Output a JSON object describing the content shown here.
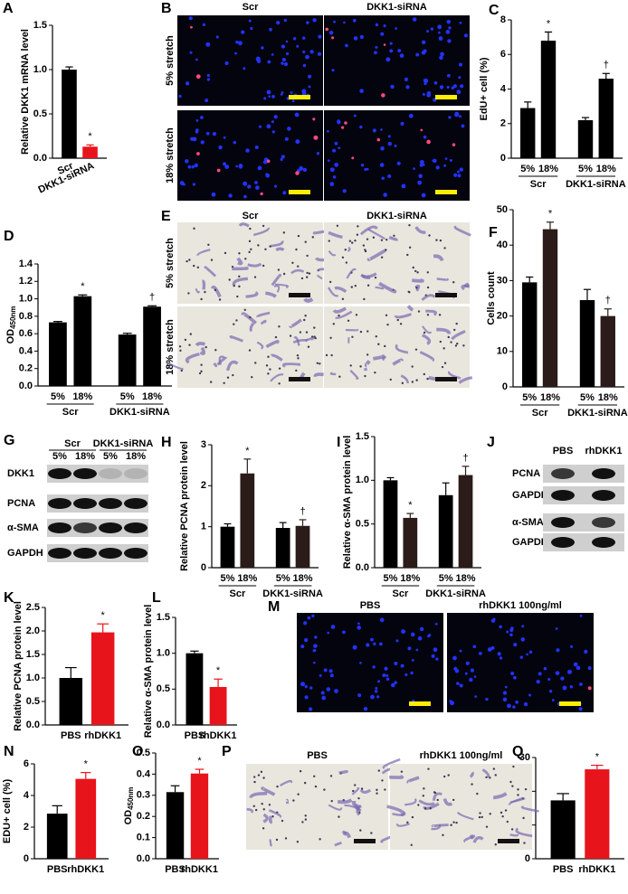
{
  "chart_data": [
    {
      "panel": "A",
      "type": "bar",
      "ylabel": "Relative DKK1 mRNA level",
      "categories": [
        "Scr",
        "DKK1-siRNA"
      ],
      "values": [
        1.0,
        0.13
      ],
      "errors": [
        0.03,
        0.02
      ],
      "colors": [
        "#000000",
        "#e8141c"
      ],
      "annotations": [
        null,
        "*"
      ],
      "ylim": [
        0,
        1.5
      ],
      "yticks": [
        {
          "value": 0,
          "label": "0.0"
        },
        0.5,
        {
          "value": 1,
          "label": "1.0"
        },
        1.5
      ]
    },
    {
      "panel": "C",
      "type": "bar",
      "ylabel": "EdU+ cell (%)",
      "groups": [
        "Scr",
        "DKK1-siRNA"
      ],
      "categories": [
        "5%",
        "18%",
        "5%",
        "18%"
      ],
      "values": [
        2.9,
        6.8,
        2.2,
        4.6
      ],
      "errors": [
        0.35,
        0.5,
        0.15,
        0.3
      ],
      "colors": [
        "#000000",
        "#000000",
        "#000000",
        "#000000"
      ],
      "annotations": [
        null,
        "*",
        null,
        "†"
      ],
      "ylim": [
        0,
        8
      ],
      "yticks": [
        0,
        2,
        4,
        6,
        8
      ]
    },
    {
      "panel": "D",
      "type": "bar",
      "ylabel": "OD",
      "ylabel_sub": "450nm",
      "groups": [
        "Scr",
        "DKK1-siRNA"
      ],
      "categories": [
        "5%",
        "18%",
        "5%",
        "18%"
      ],
      "values": [
        0.73,
        1.03,
        0.59,
        0.91
      ],
      "errors": [
        0.01,
        0.015,
        0.015,
        0.01
      ],
      "colors": [
        "#000000",
        "#000000",
        "#000000",
        "#000000"
      ],
      "annotations": [
        null,
        "*",
        null,
        "†"
      ],
      "ylim": [
        0,
        1.4
      ],
      "yticks": [
        {
          "value": 0,
          "label": "0.0"
        },
        0.2,
        0.4,
        0.6,
        0.8,
        {
          "value": 1,
          "label": "1.0"
        },
        1.2,
        1.4
      ]
    },
    {
      "panel": "F",
      "type": "bar",
      "ylabel": "Cells count",
      "groups": [
        "Scr",
        "DKK1-siRNA"
      ],
      "categories": [
        "5%",
        "18%",
        "5%",
        "18%"
      ],
      "values": [
        29.5,
        44.5,
        24.5,
        20
      ],
      "errors": [
        1.5,
        2,
        3,
        2
      ],
      "colors": [
        "#000000",
        "#2b1c19",
        "#000000",
        "#2b1c19"
      ],
      "annotations": [
        null,
        "*",
        null,
        "†"
      ],
      "ylim": [
        0,
        50
      ],
      "yticks": [
        0,
        10,
        20,
        30,
        40,
        50
      ]
    },
    {
      "panel": "H",
      "type": "bar",
      "ylabel": "Relative PCNA protein level",
      "groups": [
        "Scr",
        "DKK1-siRNA"
      ],
      "categories": [
        "5%",
        "18%",
        "5%",
        "18%"
      ],
      "values": [
        1.0,
        2.3,
        0.97,
        1.02
      ],
      "errors": [
        0.07,
        0.35,
        0.13,
        0.15
      ],
      "colors": [
        "#000000",
        "#2b1c19",
        "#000000",
        "#2b1c19"
      ],
      "annotations": [
        null,
        "*",
        null,
        "†"
      ],
      "ylim": [
        0,
        3
      ],
      "yticks": [
        0,
        1,
        2,
        3
      ]
    },
    {
      "panel": "I",
      "type": "bar",
      "ylabel": "Relative α-SMA protein level",
      "groups": [
        "Scr",
        "DKK1-siRNA"
      ],
      "categories": [
        "5%",
        "18%",
        "5%",
        "18%"
      ],
      "values": [
        1.0,
        0.57,
        0.83,
        1.06
      ],
      "errors": [
        0.03,
        0.05,
        0.14,
        0.1
      ],
      "colors": [
        "#000000",
        "#2b1c19",
        "#000000",
        "#2b1c19"
      ],
      "annotations": [
        null,
        "*",
        null,
        "†"
      ],
      "ylim": [
        0,
        1.5
      ],
      "yticks": [
        {
          "value": 0,
          "label": "0.0"
        },
        0.5,
        {
          "value": 1,
          "label": "1.0"
        },
        1.5
      ]
    },
    {
      "panel": "K",
      "type": "bar",
      "ylabel": "Relative PCNA protein level",
      "categories": [
        "PBS",
        "rhDKK1"
      ],
      "values": [
        1.0,
        1.97
      ],
      "errors": [
        0.22,
        0.18
      ],
      "colors": [
        "#000000",
        "#e8141c"
      ],
      "annotations": [
        null,
        "*"
      ],
      "ylim": [
        0,
        2.5
      ],
      "yticks": [
        {
          "value": 0,
          "label": "0.0"
        },
        0.5,
        {
          "value": 1,
          "label": "1.0"
        },
        1.5,
        {
          "value": 2,
          "label": "2.0"
        },
        2.5
      ]
    },
    {
      "panel": "L",
      "type": "bar",
      "ylabel": "Relative α-SMA protein level",
      "categories": [
        "PBS",
        "rhDKK1"
      ],
      "values": [
        1.0,
        0.53
      ],
      "errors": [
        0.03,
        0.11
      ],
      "colors": [
        "#000000",
        "#e8141c"
      ],
      "annotations": [
        null,
        "*"
      ],
      "ylim": [
        0,
        1.5
      ],
      "yticks": [
        {
          "value": 0,
          "label": "0.0"
        },
        0.5,
        {
          "value": 1,
          "label": "1.0"
        },
        1.5
      ]
    },
    {
      "panel": "N",
      "type": "bar",
      "ylabel": "EDU+ cell (%)",
      "categories": [
        "PBS",
        "rhDKK1"
      ],
      "values": [
        2.85,
        5.05
      ],
      "errors": [
        0.5,
        0.4
      ],
      "colors": [
        "#000000",
        "#e8141c"
      ],
      "annotations": [
        null,
        "*"
      ],
      "ylim": [
        0,
        6
      ],
      "yticks": [
        0,
        2,
        4,
        6
      ]
    },
    {
      "panel": "O",
      "type": "bar",
      "ylabel": "OD",
      "ylabel_sub": "450nm",
      "categories": [
        "PBS",
        "rhDKK1"
      ],
      "values": [
        0.315,
        0.403
      ],
      "errors": [
        0.03,
        0.02
      ],
      "colors": [
        "#000000",
        "#e8141c"
      ],
      "annotations": [
        null,
        "*"
      ],
      "ylim": [
        0,
        0.5
      ],
      "yticks": [
        {
          "value": 0,
          "label": "0.0"
        },
        0.1,
        0.2,
        0.3,
        0.4,
        0.5
      ]
    },
    {
      "panel": "Q",
      "type": "bar",
      "ylabel": "Cells count",
      "categories": [
        "PBS",
        "rhDKK1"
      ],
      "values": [
        17.3,
        26.5
      ],
      "errors": [
        2,
        1.2
      ],
      "colors": [
        "#000000",
        "#e8141c"
      ],
      "annotations": [
        null,
        "*"
      ],
      "ylim": [
        0,
        30
      ],
      "yticks": [
        0,
        10,
        20,
        30
      ]
    }
  ],
  "images": [
    {
      "panel": "B",
      "columns": [
        "Scr",
        "DKK1-siRNA"
      ],
      "rows": [
        "5% stretch",
        "18% stretch"
      ]
    },
    {
      "panel": "E",
      "columns": [
        "Scr",
        "DKK1-siRNA"
      ],
      "rows": [
        "5% stretch",
        "18% stretch"
      ]
    },
    {
      "panel": "M",
      "columns": [
        "PBS",
        "rhDKK1 100ng/ml"
      ]
    },
    {
      "panel": "P",
      "columns": [
        "PBS",
        "rhDKK1 100ng/ml"
      ]
    }
  ],
  "blots": [
    {
      "panel": "G",
      "groups": [
        "Scr",
        "DKK1-siRNA"
      ],
      "lanes": [
        "5%",
        "18%",
        "5%",
        "18%"
      ],
      "rows": [
        "DKK1",
        "PCNA",
        "α-SMA",
        "GAPDH"
      ]
    },
    {
      "panel": "J",
      "lanes": [
        "PBS",
        "rhDKK1"
      ],
      "rows": [
        "PCNA",
        "GAPDH",
        "α-SMA",
        "GAPDH"
      ]
    }
  ]
}
